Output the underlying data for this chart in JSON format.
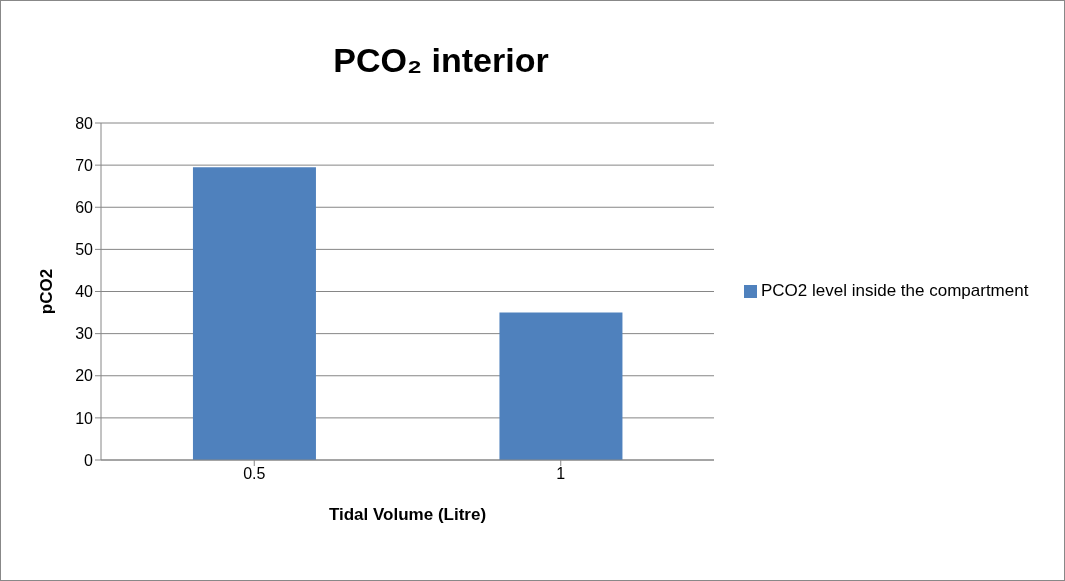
{
  "chart_data": {
    "type": "bar",
    "title": "PCO₂ interior",
    "xlabel": "Tidal Volume (Litre)",
    "ylabel": "pCO2",
    "categories": [
      "0.5",
      "1"
    ],
    "series": [
      {
        "name": "PCO2 level inside the compartment",
        "color": "#4f81bd",
        "values": [
          69.5,
          35
        ]
      }
    ],
    "ylim": [
      0,
      80
    ],
    "yticks": [
      0,
      10,
      20,
      30,
      40,
      50,
      60,
      70,
      80
    ],
    "grid": "y",
    "legend": "right"
  }
}
